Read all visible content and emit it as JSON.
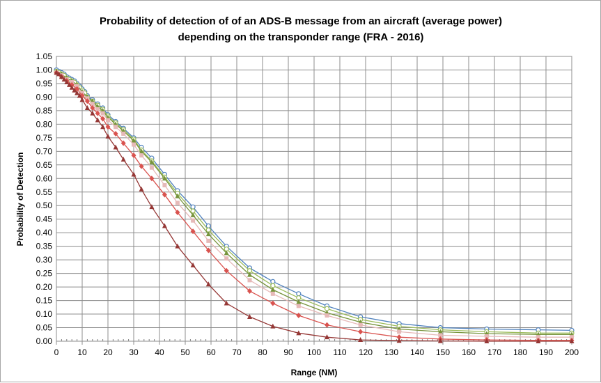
{
  "chart_data": {
    "type": "line",
    "title_lines": [
      "Probability of detection of of an ADS-B message from an aircraft (average power)",
      "depending on the transponder range (FRA - 2016)"
    ],
    "xlabel": "Range (NM)",
    "ylabel": "Probability of Detection",
    "xlim": [
      0,
      200
    ],
    "ylim": [
      0,
      1.05
    ],
    "x_ticks": [
      "0",
      "10",
      "20",
      "30",
      "40",
      "50",
      "60",
      "70",
      "80",
      "90",
      "100",
      "110",
      "120",
      "130",
      "140",
      "150",
      "160",
      "170",
      "180",
      "190",
      "200"
    ],
    "y_ticks": [
      "0.00",
      "0.05",
      "0.10",
      "0.15",
      "0.20",
      "0.25",
      "0.30",
      "0.35",
      "0.40",
      "0.45",
      "0.50",
      "0.55",
      "0.60",
      "0.65",
      "0.70",
      "0.75",
      "0.80",
      "0.85",
      "0.90",
      "0.95",
      "1.00",
      "1.05"
    ],
    "grid": true,
    "legend": "none",
    "series": [
      {
        "color": "#4f81bd",
        "marker": "circle",
        "x": [
          0,
          1,
          2,
          3,
          4,
          5,
          6,
          7,
          8,
          9,
          10,
          11,
          12,
          14,
          16,
          18,
          20,
          23,
          26,
          30,
          33,
          37,
          42,
          47,
          53,
          59,
          66,
          75,
          84,
          94,
          105,
          118,
          133,
          149,
          167,
          187,
          200
        ],
        "y": [
          1.0,
          0.995,
          0.99,
          0.985,
          0.975,
          0.97,
          0.965,
          0.96,
          0.95,
          0.94,
          0.93,
          0.92,
          0.905,
          0.89,
          0.875,
          0.86,
          0.835,
          0.81,
          0.785,
          0.75,
          0.715,
          0.675,
          0.615,
          0.555,
          0.495,
          0.425,
          0.35,
          0.27,
          0.22,
          0.175,
          0.13,
          0.09,
          0.065,
          0.05,
          0.045,
          0.042,
          0.04
        ]
      },
      {
        "color": "#9bbb59",
        "marker": "circle",
        "x": [
          0,
          1,
          2,
          3,
          4,
          5,
          6,
          7,
          8,
          9,
          10,
          11,
          12,
          14,
          16,
          18,
          20,
          23,
          26,
          30,
          33,
          37,
          42,
          47,
          53,
          59,
          66,
          75,
          84,
          94,
          105,
          118,
          133,
          149,
          167,
          187,
          200
        ],
        "y": [
          0.995,
          0.99,
          0.985,
          0.98,
          0.97,
          0.965,
          0.96,
          0.955,
          0.945,
          0.935,
          0.925,
          0.915,
          0.9,
          0.885,
          0.87,
          0.855,
          0.83,
          0.805,
          0.78,
          0.745,
          0.705,
          0.665,
          0.605,
          0.545,
          0.48,
          0.41,
          0.34,
          0.26,
          0.205,
          0.16,
          0.12,
          0.08,
          0.055,
          0.042,
          0.035,
          0.03,
          0.03
        ]
      },
      {
        "color": "#77933c",
        "marker": "triangle",
        "x": [
          0,
          2,
          4,
          6,
          8,
          10,
          12,
          14,
          16,
          18,
          20,
          23,
          26,
          30,
          33,
          37,
          42,
          47,
          53,
          59,
          66,
          75,
          84,
          94,
          105,
          118,
          133,
          149,
          167,
          187,
          200
        ],
        "y": [
          0.995,
          0.985,
          0.97,
          0.96,
          0.945,
          0.92,
          0.9,
          0.885,
          0.865,
          0.85,
          0.825,
          0.8,
          0.775,
          0.74,
          0.7,
          0.66,
          0.6,
          0.535,
          0.465,
          0.395,
          0.325,
          0.245,
          0.19,
          0.145,
          0.105,
          0.07,
          0.045,
          0.035,
          0.028,
          0.025,
          0.025
        ]
      },
      {
        "color": "#e6b9b8",
        "marker": "square",
        "x": [
          0,
          2,
          4,
          6,
          8,
          10,
          12,
          14,
          16,
          18,
          20,
          23,
          26,
          30,
          33,
          37,
          42,
          47,
          53,
          59,
          66,
          75,
          84,
          94,
          105,
          118,
          133,
          149,
          167,
          187,
          200
        ],
        "y": [
          0.99,
          0.98,
          0.965,
          0.955,
          0.94,
          0.915,
          0.895,
          0.875,
          0.855,
          0.84,
          0.815,
          0.79,
          0.765,
          0.725,
          0.685,
          0.64,
          0.575,
          0.51,
          0.445,
          0.37,
          0.305,
          0.225,
          0.175,
          0.13,
          0.095,
          0.06,
          0.035,
          0.022,
          0.018,
          0.015,
          0.015
        ]
      },
      {
        "color": "#d9534f",
        "marker": "diamond",
        "x": [
          0,
          2,
          4,
          6,
          8,
          10,
          12,
          14,
          16,
          18,
          20,
          23,
          26,
          30,
          33,
          37,
          42,
          47,
          53,
          59,
          66,
          75,
          84,
          94,
          105,
          118,
          133,
          149,
          167,
          187,
          200
        ],
        "y": [
          0.99,
          0.975,
          0.96,
          0.945,
          0.93,
          0.905,
          0.885,
          0.86,
          0.84,
          0.82,
          0.79,
          0.765,
          0.73,
          0.685,
          0.645,
          0.6,
          0.54,
          0.475,
          0.405,
          0.335,
          0.26,
          0.185,
          0.14,
          0.095,
          0.06,
          0.035,
          0.015,
          0.008,
          0.005,
          0.003,
          0.003
        ]
      },
      {
        "color": "#953735",
        "marker": "triangle",
        "x": [
          0,
          1,
          2,
          3,
          4,
          5,
          6,
          7,
          8,
          9,
          10,
          12,
          14,
          16,
          18,
          20,
          23,
          26,
          30,
          33,
          37,
          42,
          47,
          53,
          59,
          66,
          75,
          84,
          94,
          105,
          118,
          133,
          149,
          167,
          187,
          200
        ],
        "y": [
          0.99,
          0.985,
          0.975,
          0.965,
          0.955,
          0.945,
          0.935,
          0.925,
          0.915,
          0.905,
          0.89,
          0.86,
          0.84,
          0.815,
          0.79,
          0.755,
          0.715,
          0.67,
          0.615,
          0.56,
          0.495,
          0.425,
          0.35,
          0.28,
          0.21,
          0.14,
          0.09,
          0.055,
          0.03,
          0.015,
          0.005,
          0.002,
          0.001,
          0.0,
          0.0,
          0.0
        ]
      }
    ]
  }
}
